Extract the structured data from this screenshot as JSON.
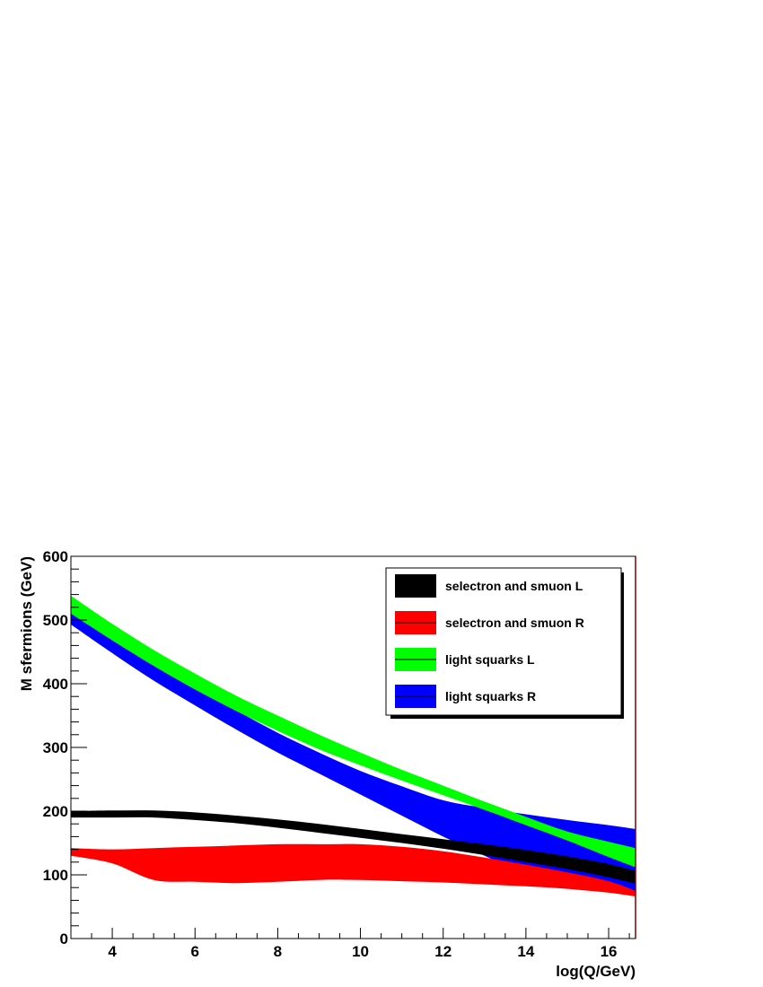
{
  "chart_data": {
    "type": "area",
    "xlabel": "log(Q/GeV)",
    "ylabel": "M sfermions (GeV)",
    "xlim": [
      3,
      16.65
    ],
    "ylim": [
      0,
      600
    ],
    "x_ticks": [
      4,
      6,
      8,
      10,
      12,
      14,
      16
    ],
    "y_ticks": [
      0,
      100,
      200,
      300,
      400,
      500,
      600
    ],
    "legend_position": "top-right",
    "series": [
      {
        "name": "selectron and smuon L",
        "color": "#000000",
        "x": [
          3,
          4,
          5,
          6,
          7,
          8,
          9,
          10,
          11,
          12,
          13,
          14,
          15,
          16,
          16.65
        ],
        "lower": [
          190,
          190,
          190,
          186,
          181,
          174,
          166,
          158,
          150,
          141,
          131,
          120,
          109,
          96,
          86
        ],
        "upper": [
          200,
          201,
          201,
          198,
          193,
          187,
          180,
          172,
          164,
          156,
          148,
          139,
          129,
          117,
          106
        ]
      },
      {
        "name": "selectron and smuon R",
        "color": "#ff0000",
        "x": [
          3,
          4,
          5,
          6,
          7,
          8,
          9,
          10,
          11,
          12,
          13,
          14,
          15,
          16,
          16.65
        ],
        "lower": [
          130,
          118,
          92,
          89,
          87,
          89,
          92,
          92,
          90,
          88,
          85,
          82,
          78,
          72,
          66
        ],
        "upper": [
          142,
          140,
          142,
          144,
          146,
          148,
          148,
          148,
          144,
          137,
          127,
          116,
          104,
          90,
          75
        ]
      },
      {
        "name": "light squarks L",
        "color": "#00ff00",
        "x": [
          3,
          4,
          5,
          6,
          7,
          8,
          9,
          10,
          11,
          12,
          13,
          14,
          15,
          16,
          16.65
        ],
        "lower": [
          510,
          468,
          428,
          391,
          357,
          326,
          297,
          272,
          248,
          225,
          202,
          178,
          154,
          128,
          112
        ],
        "upper": [
          538,
          494,
          453,
          416,
          381,
          350,
          320,
          292,
          265,
          240,
          215,
          191,
          168,
          152,
          142
        ]
      },
      {
        "name": "light squarks R",
        "color": "#0000ff",
        "x": [
          3,
          4,
          5,
          6,
          7,
          8,
          9,
          10,
          11,
          12,
          13,
          14,
          15,
          16,
          16.65
        ],
        "lower": [
          493,
          448,
          405,
          366,
          328,
          292,
          259,
          226,
          193,
          160,
          130,
          102,
          87,
          75,
          70
        ],
        "upper": [
          518,
          475,
          434,
          395,
          358,
          323,
          292,
          263,
          239,
          217,
          205,
          195,
          186,
          178,
          172
        ]
      }
    ]
  }
}
